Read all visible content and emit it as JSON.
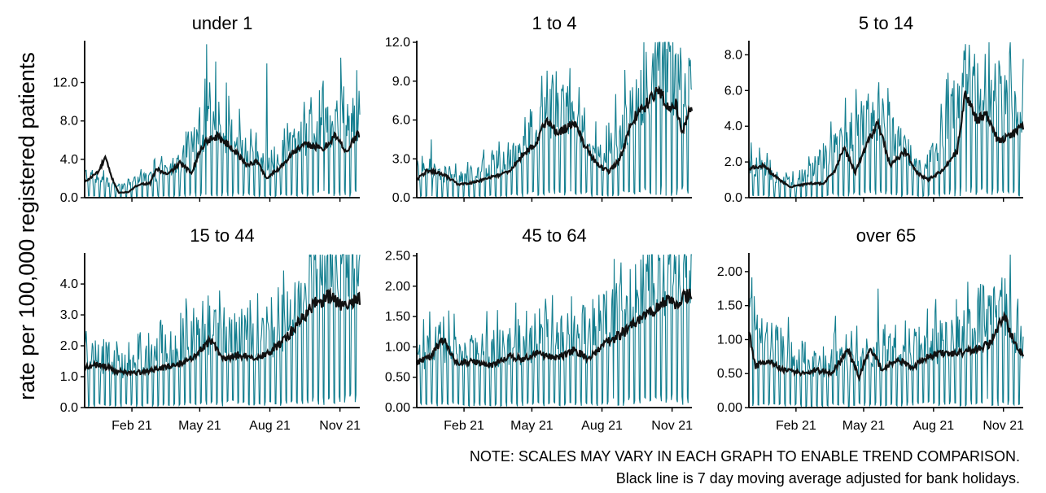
{
  "ylabel": "rate per 100,000 registered patients",
  "notes": {
    "line1": "NOTE: SCALES MAY VARY IN EACH GRAPH TO ENABLE TREND COMPARISON.",
    "line2": "Black line is 7 day moving average adjusted for bank holidays."
  },
  "colors": {
    "daily": "#137e8f",
    "average": "#111111",
    "axis": "#000000"
  },
  "x_axis": {
    "start": "2020-12-01",
    "end": "2021-11-27",
    "ticks": [
      {
        "date": "2021-02-01",
        "label": "Feb 21"
      },
      {
        "date": "2021-05-01",
        "label": "May 21"
      },
      {
        "date": "2021-08-01",
        "label": "Aug 21"
      },
      {
        "date": "2021-11-01",
        "label": "Nov 21"
      }
    ]
  },
  "chart_data": [
    {
      "type": "line",
      "title": "under 1",
      "ylim": [
        0,
        16.2
      ],
      "yticks": [
        0,
        4,
        8,
        12
      ],
      "ytick_labels": [
        "0.0",
        "4.0",
        "8.0",
        "12.0"
      ],
      "average_points": [
        [
          "2020-12-01",
          1.6
        ],
        [
          "2020-12-20",
          2.8
        ],
        [
          "2020-12-28",
          4.2
        ],
        [
          "2021-01-05",
          2.2
        ],
        [
          "2021-01-15",
          0.5
        ],
        [
          "2021-01-28",
          0.6
        ],
        [
          "2021-02-10",
          1.4
        ],
        [
          "2021-02-25",
          1.5
        ],
        [
          "2021-03-05",
          3.0
        ],
        [
          "2021-03-20",
          2.4
        ],
        [
          "2021-04-05",
          3.6
        ],
        [
          "2021-04-20",
          2.6
        ],
        [
          "2021-05-01",
          4.8
        ],
        [
          "2021-05-10",
          6.0
        ],
        [
          "2021-05-25",
          6.4
        ],
        [
          "2021-06-15",
          5.0
        ],
        [
          "2021-07-01",
          3.4
        ],
        [
          "2021-07-15",
          3.8
        ],
        [
          "2021-07-28",
          2.0
        ],
        [
          "2021-08-15",
          3.2
        ],
        [
          "2021-09-01",
          4.8
        ],
        [
          "2021-09-20",
          5.6
        ],
        [
          "2021-10-10",
          5.0
        ],
        [
          "2021-10-25",
          6.5
        ],
        [
          "2021-11-10",
          4.8
        ],
        [
          "2021-11-24",
          6.6
        ]
      ],
      "daily_mean_points": [
        [
          "2020-12-01",
          1.8
        ],
        [
          "2021-01-15",
          0.8
        ],
        [
          "2021-04-01",
          2.4
        ],
        [
          "2021-05-15",
          6.0
        ],
        [
          "2021-07-25",
          2.4
        ],
        [
          "2021-10-01",
          5.2
        ],
        [
          "2021-11-24",
          5.8
        ]
      ],
      "peaks": [
        [
          "2021-05-10",
          16.0
        ],
        [
          "2021-05-22",
          14.2
        ],
        [
          "2021-07-28",
          14.0
        ],
        [
          "2021-11-02",
          14.6
        ],
        [
          "2021-10-10",
          12.2
        ],
        [
          "2021-06-05",
          12.0
        ],
        [
          "2021-09-15",
          10.0
        ],
        [
          "2021-11-18",
          10.4
        ]
      ]
    },
    {
      "type": "line",
      "title": "1 to 4",
      "ylim": [
        0,
        12.0
      ],
      "yticks": [
        0,
        3,
        6,
        9,
        12
      ],
      "ytick_labels": [
        "0.0",
        "3.0",
        "6.0",
        "9.0",
        "12.0"
      ],
      "average_points": [
        [
          "2020-12-01",
          1.4
        ],
        [
          "2020-12-15",
          2.1
        ],
        [
          "2021-01-05",
          1.8
        ],
        [
          "2021-01-25",
          1.0
        ],
        [
          "2021-02-15",
          1.2
        ],
        [
          "2021-03-10",
          1.6
        ],
        [
          "2021-04-01",
          2.0
        ],
        [
          "2021-04-20",
          3.4
        ],
        [
          "2021-05-05",
          4.0
        ],
        [
          "2021-05-20",
          6.0
        ],
        [
          "2021-06-05",
          5.0
        ],
        [
          "2021-06-25",
          5.8
        ],
        [
          "2021-07-10",
          4.0
        ],
        [
          "2021-07-25",
          2.6
        ],
        [
          "2021-08-10",
          2.0
        ],
        [
          "2021-08-25",
          3.0
        ],
        [
          "2021-09-10",
          6.0
        ],
        [
          "2021-10-01",
          7.4
        ],
        [
          "2021-10-15",
          8.5
        ],
        [
          "2021-10-25",
          7.0
        ],
        [
          "2021-11-05",
          7.4
        ],
        [
          "2021-11-15",
          5.0
        ],
        [
          "2021-11-24",
          7.0
        ]
      ],
      "daily_mean_points": [
        [
          "2020-12-01",
          1.5
        ],
        [
          "2021-02-01",
          1.1
        ],
        [
          "2021-04-15",
          2.6
        ],
        [
          "2021-06-01",
          5.4
        ],
        [
          "2021-08-01",
          2.2
        ],
        [
          "2021-10-15",
          7.6
        ],
        [
          "2021-11-24",
          6.4
        ]
      ],
      "peaks": [
        [
          "2021-10-10",
          12.0
        ],
        [
          "2021-10-25",
          11.5
        ],
        [
          "2021-11-05",
          11.0
        ],
        [
          "2021-06-20",
          10.0
        ],
        [
          "2021-05-28",
          9.5
        ],
        [
          "2021-11-18",
          9.6
        ],
        [
          "2020-12-20",
          4.5
        ]
      ]
    },
    {
      "type": "line",
      "title": "5 to 14",
      "ylim": [
        0,
        8.7
      ],
      "yticks": [
        0,
        2,
        4,
        6,
        8
      ],
      "ytick_labels": [
        "0.0",
        "2.0",
        "4.0",
        "6.0",
        "8.0"
      ],
      "average_points": [
        [
          "2020-12-01",
          1.6
        ],
        [
          "2020-12-20",
          1.8
        ],
        [
          "2021-01-10",
          1.0
        ],
        [
          "2021-01-25",
          0.6
        ],
        [
          "2021-02-20",
          0.8
        ],
        [
          "2021-03-10",
          0.8
        ],
        [
          "2021-03-25",
          1.6
        ],
        [
          "2021-04-05",
          2.8
        ],
        [
          "2021-04-20",
          1.4
        ],
        [
          "2021-05-05",
          3.0
        ],
        [
          "2021-05-20",
          4.2
        ],
        [
          "2021-06-05",
          1.8
        ],
        [
          "2021-06-25",
          2.6
        ],
        [
          "2021-07-10",
          1.4
        ],
        [
          "2021-07-25",
          1.0
        ],
        [
          "2021-08-15",
          1.6
        ],
        [
          "2021-09-01",
          2.6
        ],
        [
          "2021-09-12",
          5.9
        ],
        [
          "2021-09-25",
          4.4
        ],
        [
          "2021-10-10",
          4.6
        ],
        [
          "2021-10-25",
          3.2
        ],
        [
          "2021-11-10",
          3.4
        ],
        [
          "2021-11-24",
          4.0
        ]
      ],
      "daily_mean_points": [
        [
          "2020-12-01",
          1.4
        ],
        [
          "2021-02-01",
          0.6
        ],
        [
          "2021-05-15",
          3.6
        ],
        [
          "2021-07-20",
          1.0
        ],
        [
          "2021-09-15",
          5.0
        ],
        [
          "2021-11-24",
          3.6
        ]
      ],
      "peaks": [
        [
          "2021-09-12",
          8.6
        ],
        [
          "2021-09-18",
          7.0
        ],
        [
          "2021-05-15",
          4.9
        ],
        [
          "2021-10-20",
          5.4
        ],
        [
          "2021-11-20",
          4.8
        ]
      ]
    },
    {
      "type": "line",
      "title": "15 to 44",
      "ylim": [
        0,
        4.95
      ],
      "yticks": [
        0,
        1,
        2,
        3,
        4
      ],
      "ytick_labels": [
        "0.0",
        "1.0",
        "2.0",
        "3.0",
        "4.0"
      ],
      "average_points": [
        [
          "2020-12-01",
          1.3
        ],
        [
          "2020-12-20",
          1.4
        ],
        [
          "2021-01-10",
          1.2
        ],
        [
          "2021-02-01",
          1.1
        ],
        [
          "2021-03-01",
          1.2
        ],
        [
          "2021-04-01",
          1.4
        ],
        [
          "2021-04-20",
          1.6
        ],
        [
          "2021-05-15",
          2.2
        ],
        [
          "2021-06-01",
          1.6
        ],
        [
          "2021-06-20",
          1.7
        ],
        [
          "2021-07-10",
          1.6
        ],
        [
          "2021-08-01",
          1.8
        ],
        [
          "2021-08-20",
          2.2
        ],
        [
          "2021-09-10",
          2.8
        ],
        [
          "2021-10-01",
          3.4
        ],
        [
          "2021-10-20",
          3.6
        ],
        [
          "2021-11-05",
          3.3
        ],
        [
          "2021-11-24",
          3.5
        ]
      ],
      "daily_mean_points": [
        [
          "2020-12-01",
          1.2
        ],
        [
          "2021-02-01",
          1.0
        ],
        [
          "2021-05-15",
          1.8
        ],
        [
          "2021-08-01",
          1.6
        ],
        [
          "2021-10-15",
          3.4
        ],
        [
          "2021-11-24",
          3.3
        ]
      ],
      "peaks": [
        [
          "2021-10-15",
          4.9
        ],
        [
          "2021-10-28",
          4.4
        ],
        [
          "2021-11-10",
          4.2
        ],
        [
          "2021-11-20",
          4.5
        ],
        [
          "2021-09-25",
          4.0
        ]
      ]
    },
    {
      "type": "line",
      "title": "45 to 64",
      "ylim": [
        0,
        2.52
      ],
      "yticks": [
        0,
        0.5,
        1.0,
        1.5,
        2.0,
        2.5
      ],
      "ytick_labels": [
        "0.00",
        "0.50",
        "1.00",
        "1.50",
        "2.00",
        "2.50"
      ],
      "average_points": [
        [
          "2020-12-01",
          0.75
        ],
        [
          "2020-12-20",
          0.85
        ],
        [
          "2021-01-05",
          1.15
        ],
        [
          "2021-01-20",
          0.75
        ],
        [
          "2021-02-15",
          0.75
        ],
        [
          "2021-03-10",
          0.7
        ],
        [
          "2021-04-01",
          0.85
        ],
        [
          "2021-04-20",
          0.8
        ],
        [
          "2021-05-10",
          0.9
        ],
        [
          "2021-06-01",
          0.8
        ],
        [
          "2021-06-25",
          0.95
        ],
        [
          "2021-07-15",
          0.8
        ],
        [
          "2021-08-05",
          1.05
        ],
        [
          "2021-08-25",
          1.2
        ],
        [
          "2021-09-15",
          1.4
        ],
        [
          "2021-10-05",
          1.55
        ],
        [
          "2021-10-20",
          1.75
        ],
        [
          "2021-11-05",
          1.7
        ],
        [
          "2021-11-24",
          1.9
        ]
      ],
      "daily_mean_points": [
        [
          "2020-12-01",
          0.7
        ],
        [
          "2021-03-01",
          0.7
        ],
        [
          "2021-06-01",
          0.85
        ],
        [
          "2021-08-15",
          1.1
        ],
        [
          "2021-10-15",
          1.6
        ],
        [
          "2021-11-24",
          1.8
        ]
      ],
      "peaks": [
        [
          "2021-11-20",
          2.5
        ],
        [
          "2021-11-05",
          2.2
        ],
        [
          "2021-10-20",
          2.0
        ],
        [
          "2021-08-15",
          1.95
        ],
        [
          "2021-05-05",
          1.55
        ],
        [
          "2021-01-05",
          1.5
        ]
      ]
    },
    {
      "type": "line",
      "title": "over 65",
      "ylim": [
        0,
        2.25
      ],
      "yticks": [
        0,
        0.5,
        1.0,
        1.5,
        2.0
      ],
      "ytick_labels": [
        "0.00",
        "0.50",
        "1.00",
        "1.50",
        "2.00"
      ],
      "average_points": [
        [
          "2020-12-01",
          1.1
        ],
        [
          "2020-12-10",
          0.6
        ],
        [
          "2020-12-25",
          0.7
        ],
        [
          "2021-01-15",
          0.55
        ],
        [
          "2021-02-10",
          0.5
        ],
        [
          "2021-03-01",
          0.55
        ],
        [
          "2021-03-20",
          0.5
        ],
        [
          "2021-04-10",
          0.85
        ],
        [
          "2021-04-25",
          0.45
        ],
        [
          "2021-05-10",
          0.9
        ],
        [
          "2021-05-25",
          0.55
        ],
        [
          "2021-06-15",
          0.7
        ],
        [
          "2021-07-05",
          0.6
        ],
        [
          "2021-07-25",
          0.75
        ],
        [
          "2021-08-15",
          0.8
        ],
        [
          "2021-09-05",
          0.8
        ],
        [
          "2021-09-25",
          0.85
        ],
        [
          "2021-10-15",
          0.95
        ],
        [
          "2021-11-01",
          1.35
        ],
        [
          "2021-11-10",
          1.1
        ],
        [
          "2021-11-24",
          0.8
        ]
      ],
      "daily_mean_points": [
        [
          "2020-12-01",
          0.9
        ],
        [
          "2021-02-15",
          0.45
        ],
        [
          "2021-06-01",
          0.6
        ],
        [
          "2021-09-01",
          0.75
        ],
        [
          "2021-11-05",
          1.1
        ],
        [
          "2021-11-24",
          0.7
        ]
      ],
      "peaks": [
        [
          "2021-11-10",
          2.25
        ],
        [
          "2021-05-20",
          1.75
        ],
        [
          "2020-12-01",
          1.5
        ],
        [
          "2021-11-20",
          1.6
        ],
        [
          "2021-10-10",
          1.45
        ],
        [
          "2021-03-25",
          1.35
        ]
      ]
    }
  ]
}
